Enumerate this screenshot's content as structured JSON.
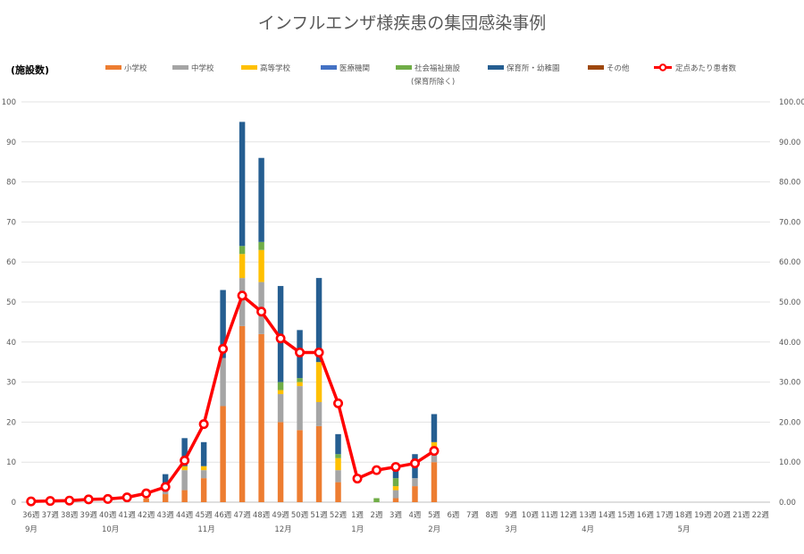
{
  "chart_data": {
    "type": "bar",
    "title": "インフルエンザ様疾患の集団感染事例",
    "ylabel_left": "(施設数)",
    "legend_position": "top",
    "grid": true,
    "ylim_left": [
      0,
      100
    ],
    "ylim_right": [
      0,
      100
    ],
    "left_ticks": [
      "0",
      "10",
      "20",
      "30",
      "40",
      "50",
      "60",
      "70",
      "80",
      "90",
      "100"
    ],
    "right_ticks": [
      "0.00",
      "10.00",
      "20.00",
      "30.00",
      "40.00",
      "50.00",
      "60.00",
      "70.00",
      "80.00",
      "90.00",
      "100.00"
    ],
    "categories": [
      "36週",
      "37週",
      "38週",
      "39週",
      "40週",
      "41週",
      "42週",
      "43週",
      "44週",
      "45週",
      "46週",
      "47週",
      "48週",
      "49週",
      "50週",
      "51週",
      "52週",
      "1週",
      "2週",
      "3週",
      "4週",
      "5週",
      "6週",
      "7週",
      "8週",
      "9週",
      "10週",
      "11週",
      "12週",
      "13週",
      "14週",
      "15週",
      "16週",
      "17週",
      "18週",
      "19週",
      "20週",
      "21週",
      "22週"
    ],
    "months": [
      {
        "label": "9月",
        "at": "36週"
      },
      {
        "label": "10月",
        "at": "40週"
      },
      {
        "label": "11月",
        "at": "45週"
      },
      {
        "label": "12月",
        "at": "49週"
      },
      {
        "label": "1月",
        "at": "1週"
      },
      {
        "label": "2月",
        "at": "5週"
      },
      {
        "label": "3月",
        "at": "9週"
      },
      {
        "label": "4月",
        "at": "13週"
      },
      {
        "label": "5月",
        "at": "18週"
      }
    ],
    "legend": {
      "sub_note": "(保育所除く)"
    },
    "series": [
      {
        "name": "小学校",
        "color": "#ED7D31",
        "values": [
          0,
          0,
          0,
          0,
          0,
          0,
          1,
          2,
          3,
          6,
          24,
          44,
          42,
          20,
          18,
          19,
          5,
          0,
          0,
          1,
          4,
          10,
          null,
          null,
          null,
          null,
          null,
          null,
          null,
          null,
          null,
          null,
          null,
          null,
          null,
          null,
          null,
          null,
          null
        ]
      },
      {
        "name": "中学校",
        "color": "#A5A5A5",
        "values": [
          0,
          0,
          0,
          0,
          0,
          0,
          0,
          2,
          5,
          2,
          12,
          12,
          13,
          7,
          11,
          6,
          3,
          0,
          0,
          2,
          2,
          2,
          null,
          null,
          null,
          null,
          null,
          null,
          null,
          null,
          null,
          null,
          null,
          null,
          null,
          null,
          null,
          null,
          null
        ]
      },
      {
        "name": "高等学校",
        "color": "#FFC000",
        "values": [
          0,
          0,
          0,
          0,
          0,
          0,
          0,
          0,
          1,
          1,
          0,
          6,
          8,
          1,
          1,
          10,
          3,
          0,
          0,
          1,
          0,
          3,
          null,
          null,
          null,
          null,
          null,
          null,
          null,
          null,
          null,
          null,
          null,
          null,
          null,
          null,
          null,
          null,
          null
        ]
      },
      {
        "name": "医療機関",
        "color": "#4472C4",
        "values": [
          0,
          0,
          0,
          0,
          0,
          0,
          0,
          0,
          0,
          0,
          0,
          0,
          0,
          0,
          0,
          0,
          0,
          0,
          0,
          0,
          0,
          0,
          null,
          null,
          null,
          null,
          null,
          null,
          null,
          null,
          null,
          null,
          null,
          null,
          null,
          null,
          null,
          null,
          null
        ]
      },
      {
        "name": "社会福祉施設",
        "color": "#70AD47",
        "values": [
          0,
          0,
          0,
          0,
          0,
          0,
          0,
          0,
          0,
          0,
          0,
          2,
          2,
          2,
          1,
          0,
          1,
          0,
          1,
          2,
          0,
          0,
          null,
          null,
          null,
          null,
          null,
          null,
          null,
          null,
          null,
          null,
          null,
          null,
          null,
          null,
          null,
          null,
          null
        ]
      },
      {
        "name": "保育所・幼稚園",
        "color": "#255E91",
        "values": [
          0,
          0,
          0,
          0,
          0,
          0,
          0,
          3,
          7,
          6,
          17,
          31,
          21,
          24,
          12,
          21,
          5,
          0,
          0,
          3,
          6,
          7,
          null,
          null,
          null,
          null,
          null,
          null,
          null,
          null,
          null,
          null,
          null,
          null,
          null,
          null,
          null,
          null,
          null
        ]
      },
      {
        "name": "その他",
        "color": "#9E480E",
        "values": [
          0,
          0,
          0,
          0,
          0,
          0,
          0,
          0,
          0,
          0,
          0,
          0,
          0,
          0,
          0,
          0,
          0,
          0,
          0,
          0,
          0,
          0,
          null,
          null,
          null,
          null,
          null,
          null,
          null,
          null,
          null,
          null,
          null,
          null,
          null,
          null,
          null,
          null,
          null
        ]
      }
    ],
    "line": {
      "name": "定点あたり患者数",
      "color": "#FF0000",
      "axis": "right",
      "values": [
        0.2,
        0.3,
        0.4,
        0.7,
        0.8,
        1.2,
        2.2,
        3.8,
        10.4,
        19.5,
        38.3,
        51.6,
        47.6,
        40.9,
        37.4,
        37.4,
        24.7,
        5.9,
        8.0,
        8.8,
        9.7,
        12.8,
        null,
        null,
        null,
        null,
        null,
        null,
        null,
        null,
        null,
        null,
        null,
        null,
        null,
        null,
        null,
        null,
        null
      ]
    }
  }
}
